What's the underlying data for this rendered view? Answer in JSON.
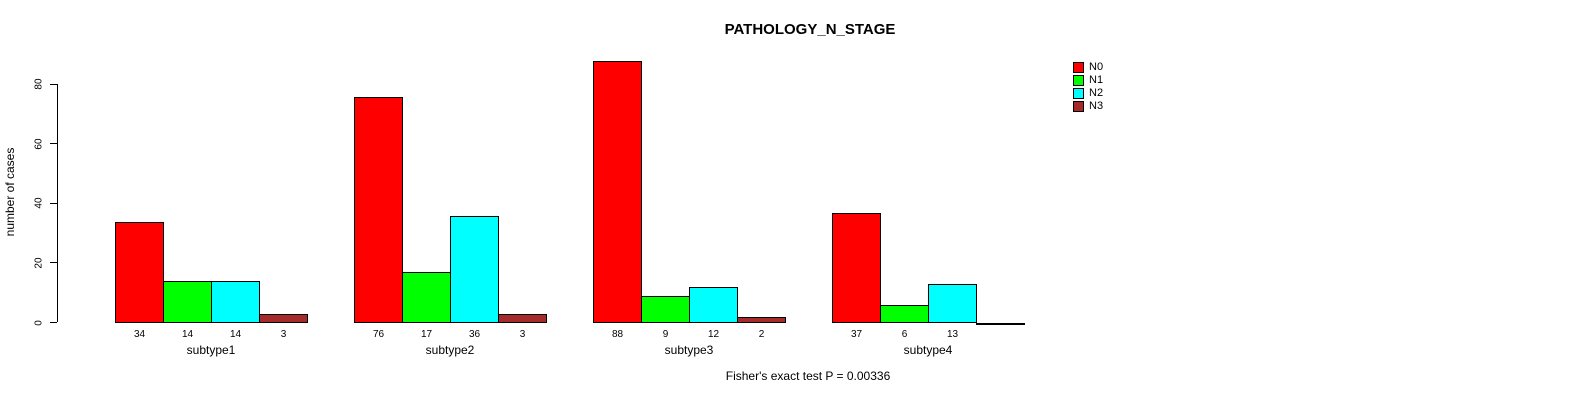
{
  "chart_data": {
    "type": "bar",
    "title": "PATHOLOGY_N_STAGE",
    "xlabel": "",
    "ylabel": "number of cases",
    "categories": [
      "subtype1",
      "subtype2",
      "subtype3",
      "subtype4"
    ],
    "series": [
      {
        "name": "N0",
        "color": "#FF0000",
        "values": [
          34,
          76,
          88,
          37
        ]
      },
      {
        "name": "N1",
        "color": "#00FF00",
        "values": [
          14,
          17,
          9,
          6
        ]
      },
      {
        "name": "N2",
        "color": "#00FFFF",
        "values": [
          14,
          36,
          12,
          13
        ]
      },
      {
        "name": "N3",
        "color": "#A52A2A",
        "values": [
          3,
          3,
          2,
          0
        ]
      }
    ],
    "yticks": [
      0,
      20,
      40,
      60,
      80
    ],
    "ylim": [
      0,
      88
    ],
    "grid": false,
    "legend_position": "top-right",
    "value_labels_shown": true,
    "zero_value_labels_hidden": true,
    "annotation": "Fisher's exact test P = 0.00336"
  }
}
